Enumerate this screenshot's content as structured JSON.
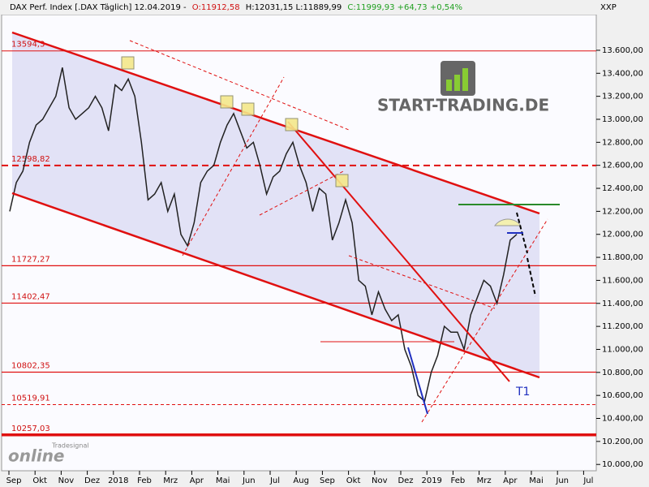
{
  "chart_data": {
    "type": "line",
    "header": {
      "instrument": "DAX Perf. Index [.DAX  Täglich] 12.04.2019 -",
      "open": "O:11912,58",
      "high_low": "H:12031,15 L:11889,99",
      "close": "C:11999,93 +64,73 +0,54%"
    },
    "corner_label": "XXP",
    "logo": "START-TRADING.DE",
    "watermark_small": "Tradesignal",
    "watermark": "online",
    "annotation": "T1",
    "x_labels": [
      "Sep",
      "Okt",
      "Nov",
      "Dez",
      "2018",
      "Feb",
      "Mrz",
      "Apr",
      "Mai",
      "Jun",
      "Jul",
      "Aug",
      "Sep",
      "Okt",
      "Nov",
      "Dez",
      "2019",
      "Feb",
      "Mrz",
      "Apr",
      "Mai",
      "Jun",
      "Jul"
    ],
    "series": [
      {
        "name": "DAX",
        "color": "#222222",
        "values": [
          12200,
          12450,
          12550,
          12800,
          12950,
          13000,
          13100,
          13200,
          13450,
          13100,
          13000,
          13050,
          13100,
          13200,
          13100,
          12900,
          13300,
          13250,
          13350,
          13200,
          12800,
          12300,
          12350,
          12450,
          12200,
          12350,
          12000,
          11900,
          12100,
          12450,
          12550,
          12600,
          12800,
          12950,
          13050,
          12900,
          12750,
          12800,
          12600,
          12350,
          12500,
          12550,
          12700,
          12800,
          12600,
          12450,
          12200,
          12400,
          12350,
          11950,
          12100,
          12300,
          12100,
          11600,
          11550,
          11300,
          11500,
          11350,
          11250,
          11300,
          11000,
          10850,
          10600,
          10550,
          10800,
          10950,
          11200,
          11150,
          11150,
          11000,
          11300,
          11450,
          11600,
          11550,
          11400,
          11650,
          11950,
          12000
        ]
      }
    ],
    "levels": [
      {
        "value": 13594.3,
        "label": "13594,3"
      },
      {
        "value": 12598.82,
        "label": "12598,82"
      },
      {
        "value": 11727.27,
        "label": "11727,27"
      },
      {
        "value": 11402.47,
        "label": "11402,47"
      },
      {
        "value": 10802.35,
        "label": "10802,35"
      },
      {
        "value": 10519.91,
        "label": "10519,91"
      },
      {
        "value": 10257.03,
        "label": "10257,03"
      }
    ],
    "ylim": [
      9945,
      13910
    ],
    "yticks": [
      {
        "value": 10000,
        "label": "10.000,00"
      },
      {
        "value": 10200,
        "label": "10.200,00"
      },
      {
        "value": 10400,
        "label": "10.400,00"
      },
      {
        "value": 10600,
        "label": "10.600,00"
      },
      {
        "value": 10800,
        "label": "10.800,00"
      },
      {
        "value": 11000,
        "label": "11.000,00"
      },
      {
        "value": 11200,
        "label": "11.200,00"
      },
      {
        "value": 11400,
        "label": "11.400,00"
      },
      {
        "value": 11600,
        "label": "11.600,00"
      },
      {
        "value": 11800,
        "label": "11.800,00"
      },
      {
        "value": 12000,
        "label": "12.000,00"
      },
      {
        "value": 12200,
        "label": "12.200,00"
      },
      {
        "value": 12400,
        "label": "12.400,00"
      },
      {
        "value": 12600,
        "label": "12.600,00"
      },
      {
        "value": 12800,
        "label": "12.800,00"
      },
      {
        "value": 13000,
        "label": "13.000,00"
      },
      {
        "value": 13200,
        "label": "13.200,00"
      },
      {
        "value": 13400,
        "label": "13.400,00"
      },
      {
        "value": 13600,
        "label": "13.600,00"
      }
    ]
  }
}
